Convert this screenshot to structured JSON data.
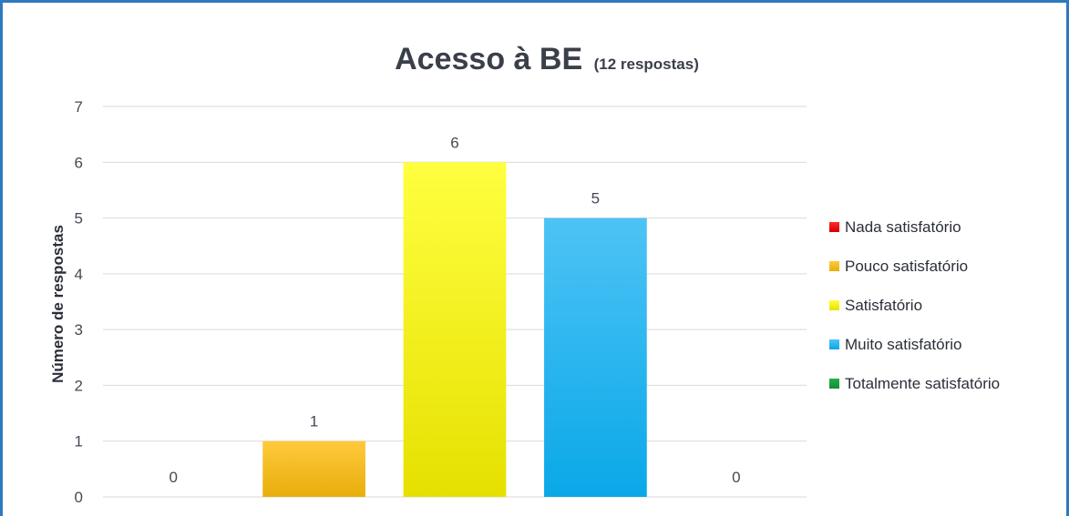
{
  "chart_data": {
    "type": "bar",
    "title": "Acesso à BE",
    "subtitle": "(12 respostas)",
    "xlabel": "",
    "ylabel": "Número de respostas",
    "ylim": [
      0,
      7
    ],
    "yticks": [
      0,
      1,
      2,
      3,
      4,
      5,
      6,
      7
    ],
    "grid": true,
    "legend_position": "right",
    "categories": [
      "Nada satisfatório",
      "Pouco satisfatório",
      "Satisfatório",
      "Muito satisfatório",
      "Totalmente satisfatório"
    ],
    "values": [
      0,
      1,
      6,
      5,
      0
    ],
    "data_labels": [
      "0",
      "1",
      "6",
      "5",
      "0"
    ],
    "colors": {
      "Nada satisfatório": {
        "top": "#FF2A2A",
        "bottom": "#D40000"
      },
      "Pouco satisfatório": {
        "top": "#FFC93C",
        "bottom": "#E8AE0C"
      },
      "Satisfatório": {
        "top": "#FFFF40",
        "bottom": "#E6E000"
      },
      "Muito satisfatório": {
        "top": "#4DC3F5",
        "bottom": "#0AA8E8"
      },
      "Totalmente satisfatório": {
        "top": "#22B04B",
        "bottom": "#138A34"
      }
    },
    "frame_color": "#2F79BE"
  }
}
